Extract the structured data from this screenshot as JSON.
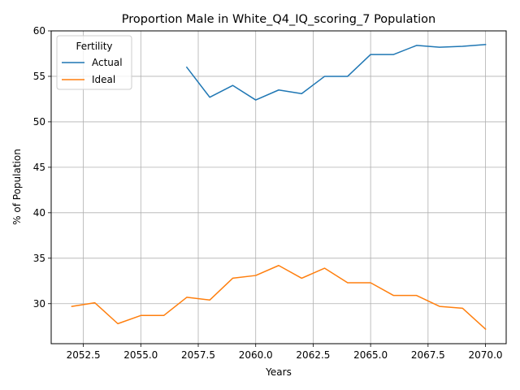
{
  "chart_data": {
    "type": "line",
    "title": "Proportion Male in White_Q4_IQ_scoring_7 Population",
    "xlabel": "Years",
    "ylabel": "% of Population",
    "xlim": [
      2051.1,
      2070.9
    ],
    "ylim": [
      25.6,
      60.0
    ],
    "x_ticks": [
      2052.5,
      2055.0,
      2057.5,
      2060.0,
      2062.5,
      2065.0,
      2067.5,
      2070.0
    ],
    "x_tick_labels": [
      "2052.5",
      "2055.0",
      "2057.5",
      "2060.0",
      "2062.5",
      "2065.0",
      "2067.5",
      "2070.0"
    ],
    "y_ticks": [
      30,
      35,
      40,
      45,
      50,
      55,
      60
    ],
    "y_tick_labels": [
      "30",
      "35",
      "40",
      "45",
      "50",
      "55",
      "60"
    ],
    "grid": true,
    "legend": {
      "title": "Fertility",
      "placement": "upper-left"
    },
    "series": [
      {
        "name": "Actual",
        "color": "#1f77b4",
        "x": [
          2057,
          2058,
          2059,
          2060,
          2061,
          2062,
          2063,
          2064,
          2065,
          2066,
          2067,
          2068,
          2069,
          2070
        ],
        "values": [
          56.0,
          52.7,
          54.0,
          52.4,
          53.5,
          53.1,
          55.0,
          55.0,
          57.4,
          57.4,
          58.4,
          58.2,
          58.3,
          58.5
        ]
      },
      {
        "name": "Ideal",
        "color": "#ff7f0e",
        "x": [
          2052,
          2053,
          2054,
          2055,
          2056,
          2057,
          2058,
          2059,
          2060,
          2061,
          2062,
          2063,
          2064,
          2065,
          2066,
          2067,
          2068,
          2069,
          2070
        ],
        "values": [
          29.7,
          30.1,
          27.8,
          28.7,
          28.7,
          30.7,
          30.4,
          32.8,
          33.1,
          34.2,
          32.8,
          33.9,
          32.3,
          32.3,
          30.9,
          30.9,
          29.7,
          29.5,
          27.2
        ]
      }
    ]
  }
}
